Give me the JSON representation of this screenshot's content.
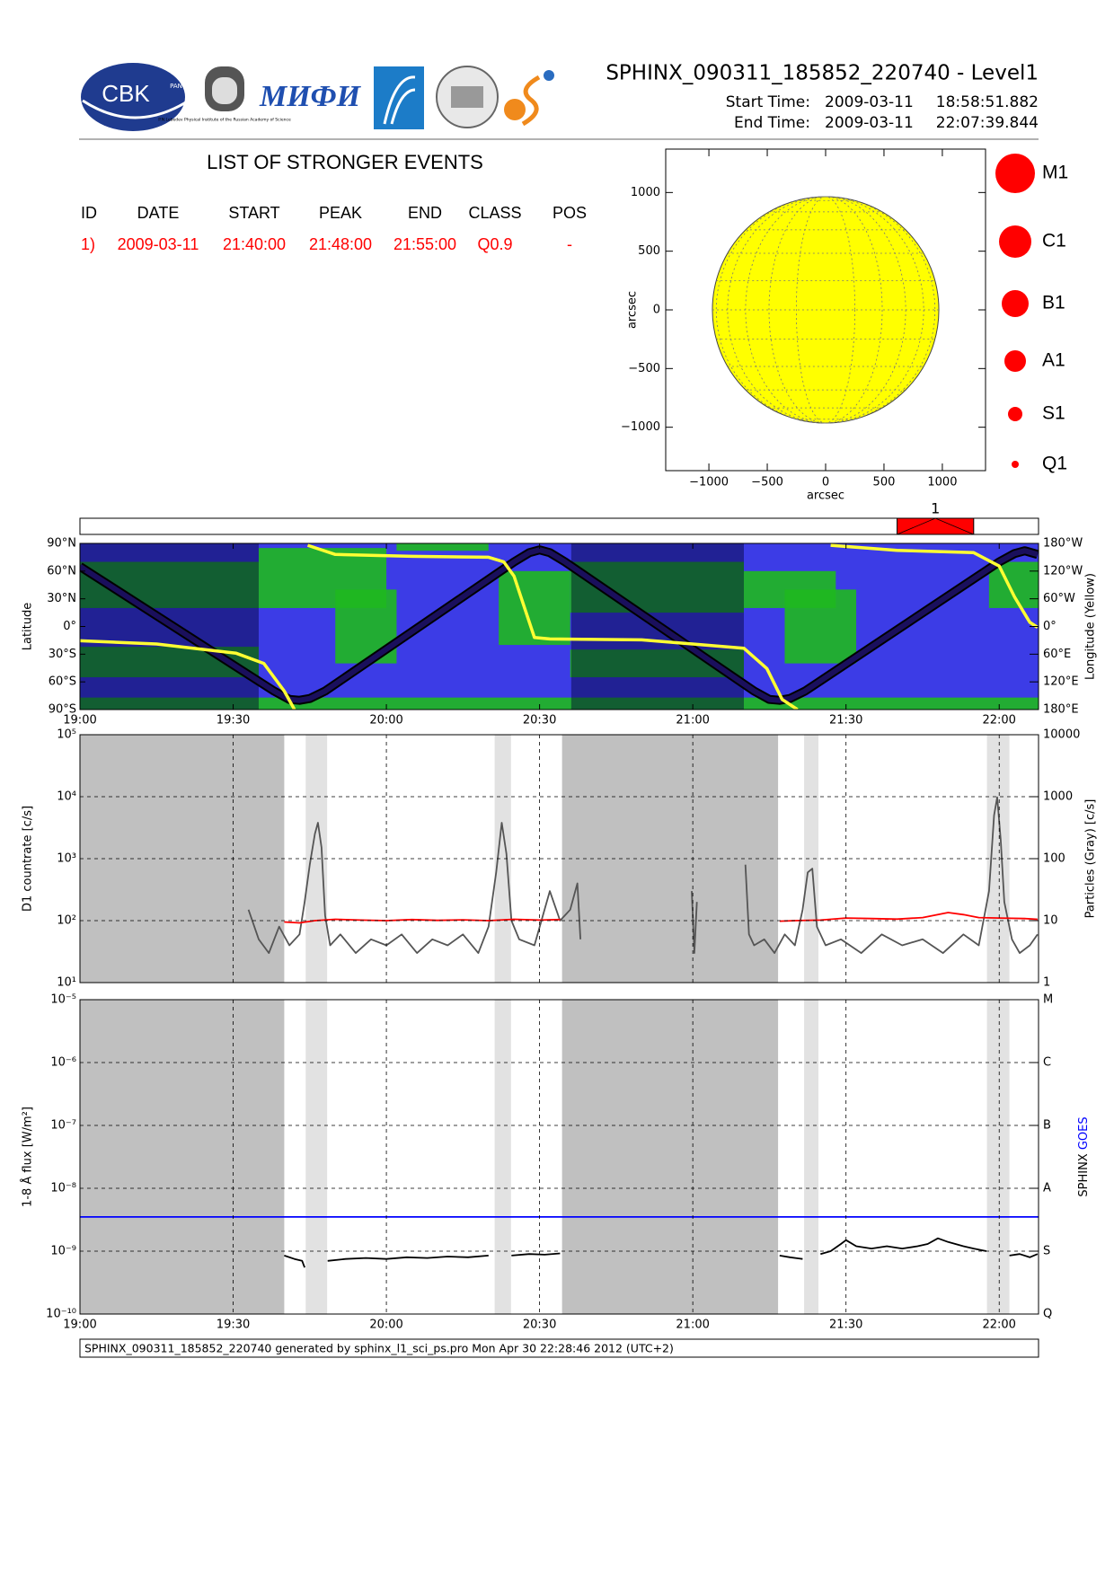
{
  "header": {
    "title": "SPHINX_090311_185852_220740 - Level1",
    "start_label": "Start Time:",
    "start_date": "2009-03-11",
    "start_time": "18:58:51.882",
    "end_label": "End Time:",
    "end_date": "2009-03-11",
    "end_time": "22:07:39.844",
    "logos": [
      "CBK",
      "PAN",
      "P.N.Lebedev Physical Institute of the Russian Academy of Science",
      "МИФИ"
    ]
  },
  "events": {
    "title": "LIST OF STRONGER EVENTS",
    "columns": [
      "ID",
      "DATE",
      "START",
      "PEAK",
      "END",
      "CLASS",
      "POS"
    ],
    "rows": [
      [
        "1)",
        "2009-03-11",
        "21:40:00",
        "21:48:00",
        "21:55:00",
        "Q0.9",
        "-"
      ]
    ]
  },
  "footer": "SPHINX_090311_185852_220740 generated by sphinx_l1_sci_ps.pro Mon Apr 30 22:28:46 2012 (UTC+2)",
  "chart_data": [
    {
      "type": "disk",
      "xlabel": "arcsec",
      "ylabel": "arcsec",
      "xlim": [
        -1370,
        1370
      ],
      "ylim": [
        -1370,
        1370
      ],
      "xticks": [
        {
          "value": -1000,
          "label": "−1000"
        },
        {
          "value": -500,
          "label": "−500"
        },
        0,
        500,
        1000
      ],
      "yticks": [
        {
          "value": -1000,
          "label": "−1000"
        },
        {
          "value": -500,
          "label": "−500"
        },
        0,
        500,
        1000
      ],
      "radius": 970,
      "color": "#ffff00",
      "legend": [
        "M1",
        "C1",
        "B1",
        "A1",
        "S1",
        "Q1"
      ],
      "legend_color": "#ff0000"
    },
    {
      "type": "timeline",
      "xlim": [
        0,
        187.7
      ],
      "color": "#ff0000",
      "events": [
        {
          "label": "1",
          "start": 160,
          "end": 175
        }
      ]
    },
    {
      "type": "orbit-map",
      "ylabel": "Latitude",
      "y2label": "Longitude (Yellow)",
      "xlim": [
        0,
        187.7
      ],
      "xticks": [
        {
          "value": 0,
          "label": "19:00"
        },
        {
          "value": 30,
          "label": "19:30"
        },
        {
          "value": 60,
          "label": "20:00"
        },
        {
          "value": 90,
          "label": "20:30"
        },
        {
          "value": 120,
          "label": "21:00"
        },
        {
          "value": 150,
          "label": "21:30"
        },
        {
          "value": 180,
          "label": "22:00"
        }
      ],
      "ylim": [
        -90,
        90
      ],
      "yticks": [
        {
          "value": -90,
          "label": "90°S"
        },
        {
          "value": -60,
          "label": "60°S"
        },
        {
          "value": -30,
          "label": "30°S"
        },
        {
          "value": 0,
          "label": "0°"
        },
        {
          "value": 30,
          "label": "30°N"
        },
        {
          "value": 60,
          "label": "60°N"
        },
        {
          "value": 90,
          "label": "90°N"
        }
      ],
      "y2lim": [
        180,
        -180
      ],
      "y2ticks": [
        {
          "value": -180,
          "label": "180°W"
        },
        {
          "value": -120,
          "label": "120°W"
        },
        {
          "value": -60,
          "label": "60°W"
        },
        {
          "value": 0,
          "label": "0°"
        },
        {
          "value": 60,
          "label": "60°E"
        },
        {
          "value": 120,
          "label": "120°E"
        },
        {
          "value": 180,
          "label": "180°E"
        }
      ],
      "dark_spans": [
        [
          0,
          35
        ],
        [
          96.2,
          130
        ]
      ],
      "series": [
        {
          "color": "#1a0f5c",
          "x": [
            0,
            38,
            41,
            43,
            45,
            48,
            85,
            88,
            90,
            92,
            95,
            132,
            135,
            137,
            139,
            142,
            180,
            183,
            185,
            187.5
          ],
          "values": [
            65,
            -70,
            -79,
            -80,
            -78,
            -70,
            70,
            80,
            83,
            80,
            70,
            -70,
            -79,
            -80,
            -78,
            -70,
            70,
            79,
            82,
            78
          ]
        },
        {
          "axis": "y2",
          "color": "#ffff33",
          "x": [
            0,
            15,
            30.6,
            36,
            40,
            42,
            43.3,
            44.6,
            50,
            65,
            80,
            83,
            85,
            87,
            89,
            92,
            110,
            130,
            134.5,
            137.5,
            140.5,
            143.8,
            147,
            160,
            175,
            180,
            183,
            186,
            187.5
          ],
          "values": [
            31,
            38,
            58,
            80,
            140,
            180,
            null,
            -176,
            -156,
            -152,
            -150,
            -140,
            -109,
            -42,
            24,
            27,
            29,
            47,
            91,
            158,
            180,
            null,
            -176,
            -165,
            -160,
            -131,
            -64,
            -9,
            2
          ]
        }
      ]
    },
    {
      "type": "line",
      "log": true,
      "grid": true,
      "show_xtick_labels": false,
      "ylabel": "D1 countrate [c/s]",
      "y2label": "Particles (Gray) [c/s]",
      "xlim": [
        0,
        187.7
      ],
      "xticks": [
        0,
        30,
        60,
        90,
        120,
        150,
        180
      ],
      "ylim": [
        10,
        100000
      ],
      "yticks": [
        {
          "value": 10,
          "label": "10¹"
        },
        {
          "value": 100,
          "label": "10²"
        },
        {
          "value": 1000,
          "label": "10³"
        },
        {
          "value": 10000,
          "label": "10⁴"
        },
        {
          "value": 100000,
          "label": "10⁵"
        }
      ],
      "y2lim": [
        1,
        10000
      ],
      "y2ticks": [
        1,
        10,
        100,
        1000,
        10000
      ],
      "night_spans": [
        [
          0,
          40
        ],
        [
          94.4,
          136.7
        ]
      ],
      "saa_spans": [
        [
          44.2,
          48.4
        ],
        [
          81.2,
          84.4
        ],
        [
          141.8,
          144.6
        ],
        [
          177.6,
          182
        ]
      ],
      "series": [
        {
          "axis": "y2",
          "color": "#555555",
          "x": [
            33,
            35,
            37,
            39,
            41,
            43,
            44,
            45,
            46,
            46.6,
            47.3,
            48,
            49,
            51,
            54,
            57,
            60,
            63,
            66,
            69,
            72,
            75,
            78,
            80,
            81.5,
            82.6,
            83.5,
            84.5,
            86,
            89,
            92,
            94,
            96,
            97.4,
            98,
            108,
            119.8,
            120.3,
            120.8,
            125,
            130.3,
            131,
            132,
            134,
            136,
            138,
            140,
            141.5,
            142.5,
            143.4,
            144.3,
            146,
            149,
            153,
            157,
            161,
            165,
            169,
            173,
            176,
            178,
            179,
            179.6,
            180.3,
            181,
            182.5,
            184,
            186,
            187.5
          ],
          "values": [
            15,
            5,
            3,
            8,
            4,
            6,
            20,
            80,
            250,
            380,
            150,
            12,
            4,
            6,
            3,
            5,
            4,
            6,
            3,
            5,
            4,
            6,
            3,
            8,
            60,
            380,
            120,
            10,
            5,
            4,
            30,
            10,
            15,
            40,
            5,
            null,
            30,
            3,
            20,
            null,
            80,
            6,
            4,
            5,
            3,
            6,
            4,
            15,
            60,
            69,
            8,
            4,
            5,
            3,
            6,
            4,
            5,
            3,
            6,
            4,
            30,
            500,
            980,
            200,
            20,
            5,
            3,
            4,
            6
          ]
        },
        {
          "color": "#ff0000",
          "x": [
            40,
            43,
            46,
            50,
            55,
            60,
            65,
            70,
            75,
            80,
            85,
            90,
            94,
            115,
            137,
            140,
            145,
            150,
            155,
            160,
            165,
            170,
            173,
            176,
            180,
            185,
            187.5
          ],
          "values": [
            95,
            92,
            100,
            105,
            102,
            100,
            104,
            101,
            103,
            100,
            105,
            102,
            104,
            null,
            98,
            100,
            102,
            110,
            108,
            106,
            112,
            135,
            125,
            112,
            110,
            108,
            105
          ]
        }
      ]
    },
    {
      "type": "line",
      "log": true,
      "grid": true,
      "ylabel": "1-8 Å flux [W/m²]",
      "xlim": [
        0,
        187.7
      ],
      "xticks": [
        {
          "value": 0,
          "label": "19:00"
        },
        {
          "value": 30,
          "label": "19:30"
        },
        {
          "value": 60,
          "label": "20:00"
        },
        {
          "value": 90,
          "label": "20:30"
        },
        {
          "value": 120,
          "label": "21:00"
        },
        {
          "value": 150,
          "label": "21:30"
        },
        {
          "value": 180,
          "label": "22:00"
        }
      ],
      "ylim": [
        1e-10,
        1e-05
      ],
      "yticks": [
        {
          "value": 1e-10,
          "label": "10⁻¹⁰"
        },
        {
          "value": 1e-09,
          "label": "10⁻⁹"
        },
        {
          "value": 1e-08,
          "label": "10⁻⁸"
        },
        {
          "value": 1e-07,
          "label": "10⁻⁷"
        },
        {
          "value": 1e-06,
          "label": "10⁻⁶"
        },
        {
          "value": 1e-05,
          "label": "10⁻⁵"
        }
      ],
      "y2lim": [
        1e-10,
        1e-05
      ],
      "y2ticks": [
        {
          "value": 1e-10,
          "label": "Q"
        },
        {
          "value": 1e-09,
          "label": "S"
        },
        {
          "value": 1e-08,
          "label": "A"
        },
        {
          "value": 1e-07,
          "label": "B"
        },
        {
          "value": 1e-06,
          "label": "C"
        },
        {
          "value": 1e-05,
          "label": "M"
        }
      ],
      "night_spans": [
        [
          0,
          40
        ],
        [
          94.4,
          136.7
        ]
      ],
      "saa_spans": [
        [
          44.2,
          48.4
        ],
        [
          81.2,
          84.4
        ],
        [
          141.8,
          144.6
        ],
        [
          177.6,
          182
        ]
      ],
      "series": [
        {
          "name": "SPHINX",
          "color": "#000000",
          "x": [
            40,
            42,
            43.5,
            44,
            46,
            48.5,
            52,
            56,
            60,
            64,
            68,
            72,
            76,
            80,
            82,
            84.5,
            88,
            91,
            94,
            115,
            137,
            139,
            141.5,
            143,
            145,
            147,
            149,
            150,
            152,
            155,
            158,
            161,
            164,
            166,
            168,
            170,
            173,
            175,
            177.5,
            180,
            182,
            184,
            186,
            187.5
          ],
          "values": [
            8.5e-10,
            7.5e-10,
            7e-10,
            5.5e-10,
            null,
            7e-10,
            7.5e-10,
            7.8e-10,
            7.5e-10,
            8e-10,
            7.8e-10,
            8.2e-10,
            8e-10,
            8.5e-10,
            null,
            8.5e-10,
            9e-10,
            8.8e-10,
            9.2e-10,
            null,
            8.5e-10,
            8e-10,
            7.5e-10,
            null,
            9e-10,
            1e-09,
            1.3e-09,
            1.5e-09,
            1.2e-09,
            1.1e-09,
            1.2e-09,
            1.1e-09,
            1.2e-09,
            1.3e-09,
            1.6e-09,
            1.4e-09,
            1.2e-09,
            1.1e-09,
            1e-09,
            null,
            8.5e-10,
            9e-10,
            8e-10,
            9e-10
          ]
        },
        {
          "name": "GOES",
          "color": "#0000ff",
          "x": [
            0,
            187.7
          ],
          "values": [
            3.5e-09,
            3.5e-09
          ]
        }
      ]
    }
  ]
}
